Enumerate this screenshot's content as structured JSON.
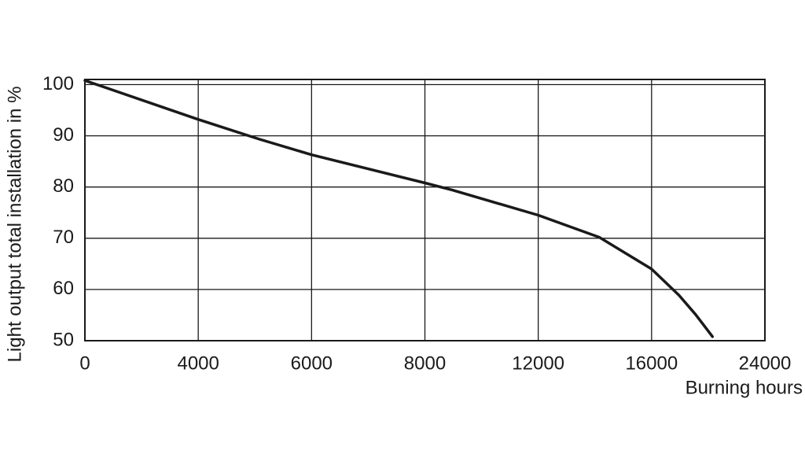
{
  "chart_data": {
    "type": "line",
    "y_label": "Light output total installation in %",
    "x_label": "Burning hours",
    "x": [
      0,
      4000,
      5060,
      6000,
      8000,
      8970,
      12000,
      14150,
      16000,
      17930,
      19110,
      20300
    ],
    "values": [
      100.8,
      93.2,
      89.4,
      86.3,
      80.8,
      79.4,
      74.5,
      70.2,
      64.0,
      58.9,
      55.1,
      50.8
    ],
    "color": "#1a1a1a",
    "xlim": [
      0,
      24000
    ],
    "xticks": [
      0,
      4000,
      6000,
      8000,
      12000,
      16000,
      24000
    ],
    "ylim": [
      50,
      101
    ],
    "yticks": [
      50,
      60,
      70,
      80,
      90,
      100
    ],
    "grid": true
  }
}
